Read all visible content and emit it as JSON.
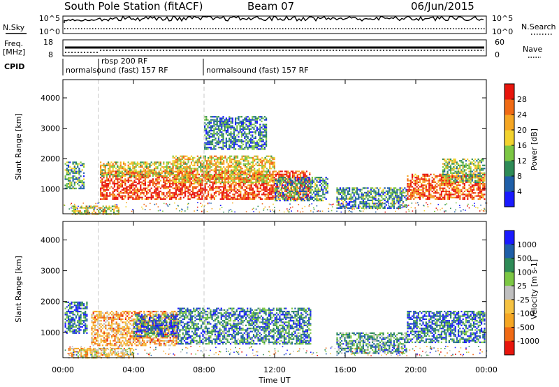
{
  "header": {
    "station": "South Pole Station (fitACF)",
    "beam": "Beam 07",
    "date": "06/Jun/2015"
  },
  "top_panels": {
    "nsky_label": "N.Sky",
    "nsearch_label": "N.Search",
    "nsky_ticks": [
      "10^5",
      "10^0"
    ],
    "nsearch_ticks": [
      "10^5",
      "10^0"
    ],
    "freq_label": "Freq.",
    "freq_unit": "[MHz]",
    "freq_ticks": [
      "18",
      "8"
    ],
    "nave_label": "Nave",
    "nave_ticks": [
      "60",
      "0"
    ],
    "cpid_label": "CPID",
    "cpid_segments": [
      {
        "text": "normalsound (fast) 157 RF",
        "start_hr": 0.0
      },
      {
        "text": "rbsp 200 RF",
        "start_hr": 2.0
      },
      {
        "text": "normalsound (fast) 157 RF",
        "start_hr": 8.0
      }
    ]
  },
  "chart_data": [
    {
      "type": "heatmap",
      "name": "power",
      "ylabel": "Slant Range [km]",
      "xlabel": "",
      "xlim": [
        0,
        24
      ],
      "ylim": [
        180,
        4600
      ],
      "yticks": [
        "1000",
        "2000",
        "3000",
        "4000"
      ],
      "colorbar_label": "Power [dB]",
      "colorbar_ticks": [
        "4",
        "8",
        "12",
        "16",
        "20",
        "24",
        "28"
      ],
      "colorbar_colors": [
        "#1a1aff",
        "#1f5fa8",
        "#2e8b57",
        "#7cc744",
        "#f2d22e",
        "#f5a623",
        "#f06a14",
        "#e8150c"
      ],
      "regions": [
        {
          "t0": 0.1,
          "t1": 1.2,
          "r0": 1000,
          "r1": 1900,
          "level": 0.35
        },
        {
          "t0": 2.1,
          "t1": 14.0,
          "r0": 650,
          "r1": 1600,
          "level": 0.9
        },
        {
          "t0": 2.1,
          "t1": 6.2,
          "r0": 1400,
          "r1": 1900,
          "level": 0.55
        },
        {
          "t0": 6.2,
          "t1": 12.0,
          "r0": 1200,
          "r1": 2100,
          "level": 0.6
        },
        {
          "t0": 12.0,
          "t1": 15.0,
          "r0": 600,
          "r1": 1400,
          "level": 0.3
        },
        {
          "t0": 15.5,
          "t1": 19.5,
          "r0": 350,
          "r1": 1050,
          "level": 0.3
        },
        {
          "t0": 19.5,
          "t1": 23.9,
          "r0": 650,
          "r1": 1500,
          "level": 0.85
        },
        {
          "t0": 21.5,
          "t1": 23.9,
          "r0": 1200,
          "r1": 2000,
          "level": 0.45
        },
        {
          "t0": 0.5,
          "t1": 3.2,
          "r0": 180,
          "r1": 450,
          "level": 0.55
        },
        {
          "t0": 8.0,
          "t1": 11.5,
          "r0": 2300,
          "r1": 3400,
          "level": 0.25
        }
      ]
    },
    {
      "type": "heatmap",
      "name": "velocity",
      "ylabel": "Slant Range [km]",
      "xlabel": "Time UT",
      "xlim": [
        0,
        24
      ],
      "ylim": [
        180,
        4600
      ],
      "xticks": [
        "00:00",
        "04:00",
        "08:00",
        "12:00",
        "16:00",
        "20:00",
        "00:00"
      ],
      "yticks": [
        "1000",
        "2000",
        "3000",
        "4000"
      ],
      "colorbar_label": "Velocity [m s-1]",
      "colorbar_ticks": [
        "1000",
        "500",
        "100",
        "25",
        "-25",
        "-100",
        "-500",
        "-1000"
      ],
      "colorbar_colors": [
        "#1a1aff",
        "#1f5fa8",
        "#2e8b57",
        "#7cc744",
        "#bfbfbf",
        "#f5c242",
        "#f5a623",
        "#f06a14",
        "#e8150c"
      ],
      "regions": [
        {
          "t0": 0.1,
          "t1": 1.4,
          "r0": 1000,
          "r1": 2000,
          "level": 0.2
        },
        {
          "t0": 1.6,
          "t1": 6.5,
          "r0": 600,
          "r1": 1700,
          "level": 0.7
        },
        {
          "t0": 4.0,
          "t1": 6.5,
          "r0": 900,
          "r1": 1600,
          "level": 0.2
        },
        {
          "t0": 6.5,
          "t1": 14.0,
          "r0": 650,
          "r1": 1800,
          "level": 0.25
        },
        {
          "t0": 15.5,
          "t1": 19.5,
          "r0": 350,
          "r1": 1000,
          "level": 0.3
        },
        {
          "t0": 19.5,
          "t1": 23.9,
          "r0": 700,
          "r1": 1700,
          "level": 0.2
        },
        {
          "t0": 0.3,
          "t1": 4.0,
          "r0": 180,
          "r1": 500,
          "level": 0.6
        }
      ]
    }
  ]
}
